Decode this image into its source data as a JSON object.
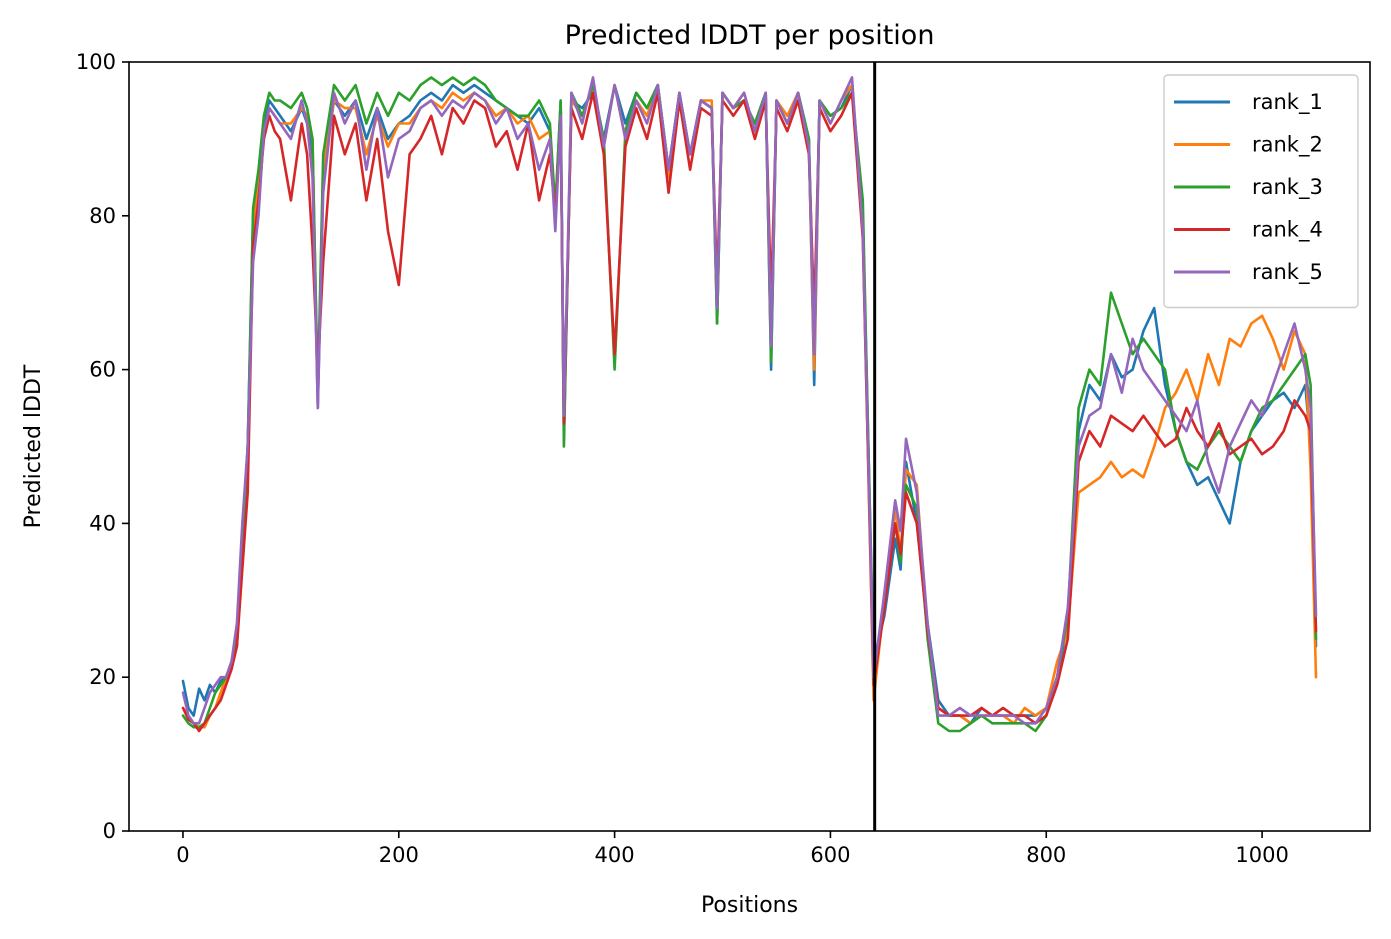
{
  "chart_data": {
    "type": "line",
    "title": "Predicted lDDT per position",
    "xlabel": "Positions",
    "ylabel": "Predicted lDDT",
    "xlim": [
      -50,
      1100
    ],
    "ylim": [
      0,
      100
    ],
    "xticks": [
      0,
      200,
      400,
      600,
      800,
      1000
    ],
    "yticks": [
      0,
      20,
      40,
      60,
      80,
      100
    ],
    "grid": false,
    "legend_position": "top-right",
    "vertical_line_x": 641,
    "vertical_line_color": "#000000",
    "series": [
      {
        "name": "rank_1",
        "color": "#1f77b4",
        "x": [
          0,
          5,
          10,
          15,
          20,
          25,
          30,
          35,
          40,
          45,
          50,
          55,
          60,
          65,
          70,
          75,
          80,
          85,
          90,
          100,
          110,
          115,
          120,
          125,
          130,
          140,
          150,
          160,
          170,
          180,
          190,
          200,
          210,
          220,
          230,
          240,
          250,
          260,
          270,
          280,
          290,
          300,
          310,
          320,
          330,
          340,
          345,
          350,
          353,
          360,
          370,
          380,
          390,
          400,
          410,
          420,
          430,
          440,
          450,
          460,
          470,
          480,
          490,
          495,
          500,
          510,
          520,
          530,
          540,
          545,
          550,
          560,
          570,
          580,
          585,
          590,
          600,
          610,
          620,
          630,
          640,
          650,
          660,
          665,
          670,
          680,
          690,
          700,
          710,
          720,
          730,
          740,
          750,
          760,
          770,
          780,
          790,
          800,
          810,
          820,
          830,
          840,
          850,
          860,
          870,
          880,
          890,
          900,
          910,
          920,
          930,
          940,
          950,
          960,
          970,
          980,
          990,
          1000,
          1010,
          1020,
          1030,
          1040,
          1045,
          1050
        ],
        "y": [
          19.5,
          16,
          15,
          18.5,
          17,
          19,
          18,
          19.5,
          20,
          22,
          24,
          36,
          50,
          80,
          84,
          92,
          95,
          94,
          93,
          91,
          94,
          92,
          88,
          55,
          85,
          95,
          93,
          95,
          90,
          94,
          90,
          92,
          93,
          95,
          96,
          95,
          97,
          96,
          97,
          96,
          95,
          94,
          93,
          92,
          94,
          91,
          80,
          95,
          51,
          95,
          94,
          96,
          90,
          97,
          92,
          96,
          94,
          97,
          86,
          96,
          88,
          95,
          94,
          66,
          96,
          94,
          95,
          92,
          96,
          60,
          95,
          92,
          96,
          90,
          58,
          95,
          93,
          94,
          97,
          80,
          22,
          28,
          38,
          34,
          48,
          40,
          27,
          17,
          15,
          15,
          14,
          16,
          15,
          15,
          15,
          15,
          15,
          16,
          20,
          27,
          52,
          58,
          56,
          62,
          59,
          60,
          65,
          68,
          58,
          52,
          48,
          45,
          46,
          43,
          40,
          48,
          52,
          54,
          56,
          57,
          55,
          58,
          50,
          24
        ]
      },
      {
        "name": "rank_2",
        "color": "#ff7f0e",
        "x": [
          0,
          5,
          10,
          15,
          20,
          25,
          30,
          35,
          40,
          45,
          50,
          55,
          60,
          65,
          70,
          75,
          80,
          85,
          90,
          100,
          110,
          115,
          120,
          125,
          130,
          140,
          150,
          160,
          170,
          180,
          190,
          200,
          210,
          220,
          230,
          240,
          250,
          260,
          270,
          280,
          290,
          300,
          310,
          320,
          330,
          340,
          345,
          350,
          353,
          360,
          370,
          380,
          390,
          400,
          410,
          420,
          430,
          440,
          450,
          460,
          470,
          480,
          490,
          495,
          500,
          510,
          520,
          530,
          540,
          545,
          550,
          560,
          570,
          580,
          585,
          590,
          600,
          610,
          620,
          630,
          640,
          650,
          660,
          665,
          670,
          680,
          690,
          700,
          710,
          720,
          730,
          740,
          750,
          760,
          770,
          780,
          790,
          800,
          810,
          820,
          830,
          840,
          850,
          860,
          870,
          880,
          890,
          900,
          910,
          920,
          930,
          940,
          950,
          960,
          970,
          980,
          990,
          1000,
          1010,
          1020,
          1030,
          1040,
          1045,
          1050
        ],
        "y": [
          16,
          15,
          14,
          13.5,
          13.5,
          15,
          16,
          18,
          20,
          22,
          26,
          38,
          48,
          78,
          84,
          90,
          94,
          93,
          92,
          92,
          94,
          93,
          90,
          56,
          86,
          95,
          94,
          94,
          88,
          93,
          89,
          92,
          92,
          94,
          95,
          94,
          96,
          95,
          96,
          95,
          93,
          94,
          92,
          93,
          90,
          91,
          80,
          94,
          52,
          95,
          93,
          97,
          89,
          97,
          90,
          95,
          93,
          97,
          85,
          96,
          88,
          95,
          95,
          67,
          96,
          94,
          96,
          91,
          96,
          62,
          95,
          93,
          96,
          89,
          60,
          95,
          92,
          95,
          97,
          78,
          17,
          30,
          42,
          36,
          47,
          45,
          26,
          16,
          15,
          15,
          14,
          15,
          15,
          15,
          14,
          16,
          15,
          16,
          22,
          26,
          44,
          45,
          46,
          48,
          46,
          47,
          46,
          50,
          55,
          57,
          60,
          56,
          62,
          58,
          64,
          63,
          66,
          67,
          64,
          60,
          65,
          62,
          47,
          20
        ]
      },
      {
        "name": "rank_3",
        "color": "#2ca02c",
        "x": [
          0,
          5,
          10,
          15,
          20,
          25,
          30,
          35,
          40,
          45,
          50,
          55,
          60,
          65,
          70,
          75,
          80,
          85,
          90,
          100,
          110,
          115,
          120,
          125,
          130,
          140,
          150,
          160,
          170,
          180,
          190,
          200,
          210,
          220,
          230,
          240,
          250,
          260,
          270,
          280,
          290,
          300,
          310,
          320,
          330,
          340,
          345,
          350,
          353,
          360,
          370,
          380,
          390,
          400,
          410,
          420,
          430,
          440,
          450,
          460,
          470,
          480,
          490,
          495,
          500,
          510,
          520,
          530,
          540,
          545,
          550,
          560,
          570,
          580,
          585,
          590,
          600,
          610,
          620,
          630,
          640,
          650,
          660,
          665,
          670,
          680,
          690,
          700,
          710,
          720,
          730,
          740,
          750,
          760,
          770,
          780,
          790,
          800,
          810,
          820,
          830,
          840,
          850,
          860,
          870,
          880,
          890,
          900,
          910,
          920,
          930,
          940,
          950,
          960,
          970,
          980,
          990,
          1000,
          1010,
          1020,
          1030,
          1040,
          1045,
          1050
        ],
        "y": [
          15,
          14,
          13.5,
          13.5,
          14,
          16,
          18,
          19,
          20,
          22,
          25,
          37,
          50,
          81,
          86,
          93,
          96,
          95,
          95,
          94,
          96,
          94,
          90,
          57,
          88,
          97,
          95,
          97,
          92,
          96,
          93,
          96,
          95,
          97,
          98,
          97,
          98,
          97,
          98,
          97,
          95,
          94,
          93,
          93,
          95,
          92,
          81,
          95,
          50,
          96,
          93,
          97,
          90,
          60,
          91,
          96,
          94,
          97,
          86,
          96,
          88,
          95,
          94,
          66,
          96,
          94,
          95,
          92,
          96,
          61,
          95,
          92,
          96,
          90,
          64,
          95,
          93,
          94,
          96,
          82,
          20,
          30,
          40,
          35,
          45,
          42,
          25,
          14,
          13,
          13,
          14,
          15,
          14,
          14,
          14,
          14,
          13,
          15,
          20,
          28,
          55,
          60,
          58,
          70,
          66,
          62,
          64,
          62,
          60,
          52,
          48,
          47,
          50,
          52,
          50,
          48,
          52,
          55,
          56,
          58,
          60,
          62,
          58,
          25
        ]
      },
      {
        "name": "rank_4",
        "color": "#d62728",
        "x": [
          0,
          5,
          10,
          15,
          20,
          25,
          30,
          35,
          40,
          45,
          50,
          55,
          60,
          65,
          70,
          75,
          80,
          85,
          90,
          100,
          110,
          115,
          120,
          125,
          130,
          140,
          150,
          160,
          170,
          180,
          190,
          200,
          210,
          220,
          230,
          240,
          250,
          260,
          270,
          280,
          290,
          300,
          310,
          320,
          330,
          340,
          345,
          350,
          353,
          360,
          370,
          380,
          390,
          400,
          410,
          420,
          430,
          440,
          450,
          460,
          470,
          480,
          490,
          495,
          500,
          510,
          520,
          530,
          540,
          545,
          550,
          560,
          570,
          580,
          585,
          590,
          600,
          610,
          620,
          630,
          640,
          650,
          660,
          665,
          670,
          680,
          690,
          700,
          710,
          720,
          730,
          740,
          750,
          760,
          770,
          780,
          790,
          800,
          810,
          820,
          830,
          840,
          850,
          860,
          870,
          880,
          890,
          900,
          910,
          920,
          930,
          940,
          950,
          960,
          970,
          980,
          990,
          1000,
          1010,
          1020,
          1030,
          1040,
          1045,
          1050
        ],
        "y": [
          16,
          14.5,
          14,
          13,
          14,
          15,
          16,
          17,
          19,
          21,
          24,
          34,
          44,
          76,
          82,
          90,
          93,
          91,
          90,
          82,
          92,
          88,
          76,
          60,
          74,
          93,
          88,
          92,
          82,
          90,
          78,
          71,
          88,
          90,
          93,
          88,
          94,
          92,
          95,
          94,
          89,
          91,
          86,
          92,
          82,
          88,
          80,
          92,
          53,
          94,
          90,
          96,
          88,
          62,
          89,
          94,
          90,
          96,
          83,
          95,
          86,
          94,
          93,
          71,
          95,
          93,
          95,
          90,
          95,
          69,
          94,
          91,
          95,
          88,
          67,
          94,
          91,
          93,
          96,
          77,
          19,
          29,
          40,
          36,
          44,
          40,
          26,
          16,
          15,
          15,
          15,
          16,
          15,
          16,
          15,
          15,
          14,
          15,
          19,
          25,
          48,
          52,
          50,
          54,
          53,
          52,
          54,
          52,
          50,
          51,
          55,
          52,
          50,
          53,
          49,
          50,
          51,
          49,
          50,
          52,
          56,
          54,
          52,
          26
        ]
      },
      {
        "name": "rank_5",
        "color": "#9467bd",
        "x": [
          0,
          5,
          10,
          15,
          20,
          25,
          30,
          35,
          40,
          45,
          50,
          55,
          60,
          65,
          70,
          75,
          80,
          85,
          90,
          100,
          110,
          115,
          120,
          125,
          130,
          140,
          150,
          160,
          170,
          180,
          190,
          200,
          210,
          220,
          230,
          240,
          250,
          260,
          270,
          280,
          290,
          300,
          310,
          320,
          330,
          340,
          345,
          350,
          353,
          360,
          370,
          380,
          390,
          400,
          410,
          420,
          430,
          440,
          450,
          460,
          470,
          480,
          490,
          495,
          500,
          510,
          520,
          530,
          540,
          545,
          550,
          560,
          570,
          580,
          585,
          590,
          600,
          610,
          620,
          630,
          640,
          650,
          660,
          665,
          670,
          680,
          690,
          700,
          710,
          720,
          730,
          740,
          750,
          760,
          770,
          780,
          790,
          800,
          810,
          820,
          830,
          840,
          850,
          860,
          870,
          880,
          890,
          900,
          910,
          920,
          930,
          940,
          950,
          960,
          970,
          980,
          990,
          1000,
          1010,
          1020,
          1030,
          1040,
          1045,
          1050
        ],
        "y": [
          18,
          15,
          14,
          14,
          16,
          18,
          19,
          20,
          20,
          22,
          27,
          40,
          50,
          74,
          80,
          91,
          94,
          93,
          92,
          90,
          95,
          92,
          85,
          55,
          83,
          96,
          92,
          95,
          86,
          94,
          85,
          90,
          91,
          94,
          95,
          93,
          95,
          94,
          96,
          95,
          92,
          94,
          90,
          92,
          86,
          90,
          78,
          93,
          54,
          96,
          92,
          98,
          89,
          97,
          90,
          95,
          92,
          97,
          86,
          96,
          88,
          95,
          94,
          68,
          96,
          94,
          96,
          91,
          96,
          63,
          95,
          92,
          96,
          89,
          62,
          95,
          92,
          95,
          98,
          78,
          20,
          31,
          43,
          39,
          51,
          44,
          27,
          15,
          15,
          16,
          15,
          15,
          15,
          15,
          15,
          14,
          14,
          16,
          20,
          29,
          50,
          54,
          55,
          62,
          57,
          64,
          60,
          58,
          56,
          54,
          52,
          56,
          48,
          44,
          50,
          53,
          56,
          54,
          58,
          62,
          66,
          60,
          55,
          28
        ]
      }
    ]
  }
}
